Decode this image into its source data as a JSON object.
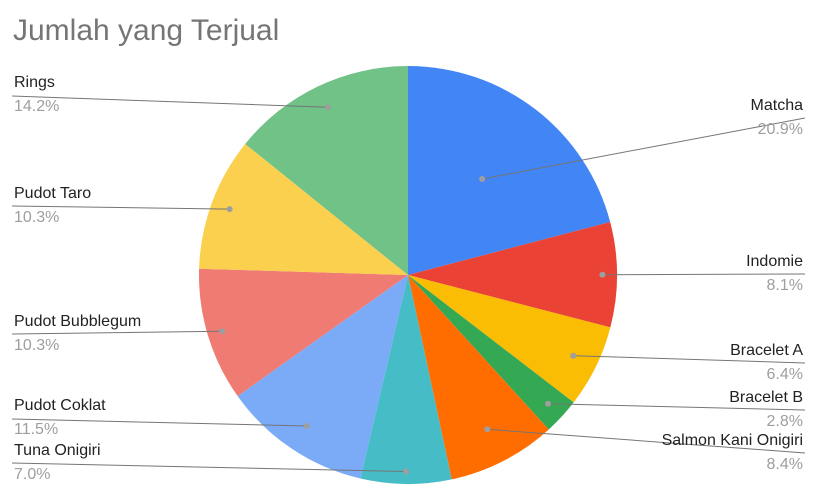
{
  "chart_data": {
    "type": "pie",
    "title": "Jumlah yang Terjual",
    "slices": [
      {
        "name": "Matcha",
        "value": 20.9,
        "label": "20.9%",
        "color": "#4285F4"
      },
      {
        "name": "Indomie",
        "value": 8.1,
        "label": "8.1%",
        "color": "#EA4335"
      },
      {
        "name": "Bracelet A",
        "value": 6.4,
        "label": "6.4%",
        "color": "#FBBC04"
      },
      {
        "name": "Bracelet B",
        "value": 2.8,
        "label": "2.8%",
        "color": "#34A853"
      },
      {
        "name": "Salmon Kani Onigiri",
        "value": 8.4,
        "label": "8.4%",
        "color": "#FF6D01"
      },
      {
        "name": "Tuna Onigiri",
        "value": 7.0,
        "label": "7.0%",
        "color": "#46BDC6"
      },
      {
        "name": "Pudot Coklat",
        "value": 11.5,
        "label": "11.5%",
        "color": "#7BAAF7"
      },
      {
        "name": "Pudot Bubblegum",
        "value": 10.3,
        "label": "10.3%",
        "color": "#F07B72"
      },
      {
        "name": "Pudot Taro",
        "value": 10.3,
        "label": "10.3%",
        "color": "#FCD04F"
      },
      {
        "name": "Rings",
        "value": 14.2,
        "label": "14.2%",
        "color": "#71C287"
      }
    ],
    "start_angle": "12 o'clock",
    "direction": "clockwise",
    "legend": "none",
    "label_style": "callout lines with name and percentage"
  }
}
